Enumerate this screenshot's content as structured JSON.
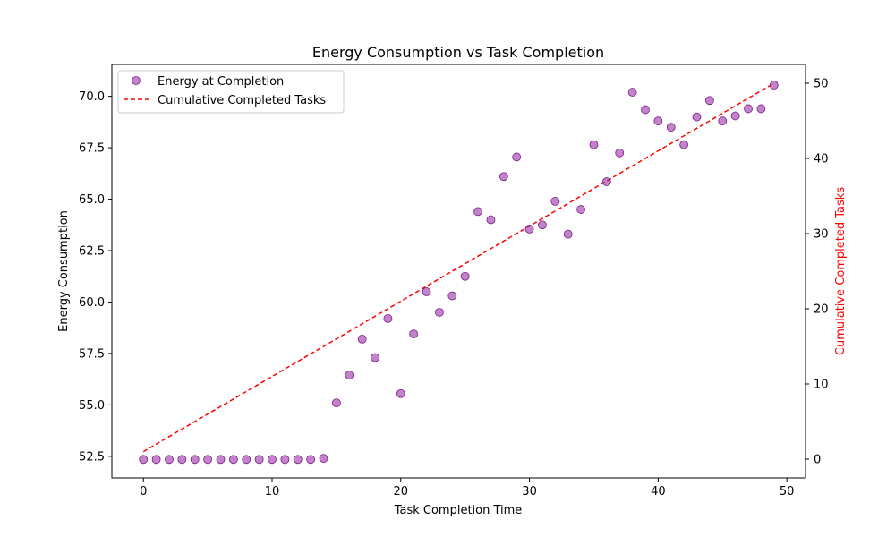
{
  "chart_data": {
    "type": "scatter+line",
    "title": "Energy Consumption vs Task Completion",
    "xlabel": "Task Completion Time",
    "ylabel_left": "Energy Consumption",
    "ylabel_right": "Cumulative Completed Tasks",
    "xlim": [
      -2.45,
      51.45
    ],
    "ylim_left": [
      51.45,
      71.55
    ],
    "ylim_right": [
      -2.5,
      52.5
    ],
    "x_ticks": [
      0,
      10,
      20,
      30,
      40,
      50
    ],
    "y_left_ticks": [
      52.5,
      55.0,
      57.5,
      60.0,
      62.5,
      65.0,
      67.5,
      70.0
    ],
    "y_right_ticks": [
      0,
      10,
      20,
      30,
      40,
      50
    ],
    "legend_position": "top-left",
    "grid": false,
    "series": [
      {
        "name": "Energy at Completion",
        "type": "scatter",
        "axis": "left",
        "color": "#9b30a8",
        "x": [
          0,
          1,
          2,
          3,
          4,
          5,
          6,
          7,
          8,
          9,
          10,
          11,
          12,
          13,
          14,
          15,
          16,
          17,
          18,
          19,
          20,
          21,
          22,
          23,
          24,
          25,
          26,
          27,
          28,
          29,
          30,
          31,
          32,
          33,
          34,
          35,
          36,
          37,
          38,
          39,
          40,
          41,
          42,
          43,
          44,
          45,
          46,
          47,
          48,
          49
        ],
        "y": [
          52.35,
          52.35,
          52.35,
          52.35,
          52.35,
          52.35,
          52.35,
          52.35,
          52.35,
          52.35,
          52.35,
          52.35,
          52.35,
          52.35,
          52.4,
          55.1,
          56.45,
          58.2,
          57.3,
          59.2,
          55.55,
          58.45,
          60.5,
          59.5,
          60.3,
          61.25,
          64.4,
          64.0,
          66.1,
          67.05,
          63.55,
          63.75,
          64.9,
          63.3,
          64.5,
          67.65,
          65.85,
          67.25,
          70.2,
          69.35,
          68.8,
          68.5,
          67.65,
          69.0,
          69.8,
          68.8,
          69.05,
          69.4,
          69.4,
          70.55
        ]
      },
      {
        "name": "Cumulative Completed Tasks",
        "type": "line",
        "style": "dashed",
        "axis": "right",
        "color": "#ff0000",
        "x": [
          0,
          49
        ],
        "y": [
          1,
          50
        ]
      }
    ]
  }
}
